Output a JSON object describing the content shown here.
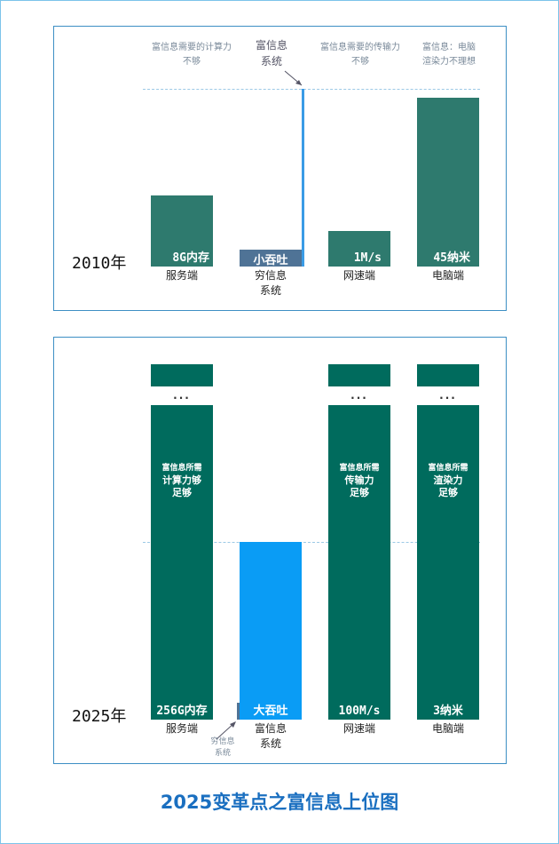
{
  "title": "2025变革点之富信息上位图",
  "panel_2010": {
    "year": "2010年",
    "notes": {
      "server": [
        "富信息需要的计算力",
        "不够"
      ],
      "rich": [
        "富信息",
        "系统"
      ],
      "network": [
        "富信息需要的传输力",
        "不够"
      ],
      "pc": [
        "富信息：电脑",
        "渲染力不理想"
      ]
    },
    "bars": {
      "server": {
        "label": "8G内存",
        "category": "服务端"
      },
      "poor": {
        "label": "小吞吐",
        "category": [
          "穷信息",
          "系统"
        ]
      },
      "network": {
        "label": "1M/s",
        "category": "网速端"
      },
      "pc": {
        "label": "45纳米",
        "category": "电脑端"
      }
    }
  },
  "panel_2025": {
    "year": "2025年",
    "ellipsis": "...",
    "bars": {
      "server": {
        "label": "256G内存",
        "category": "服务端",
        "inner": [
          "富信息所需",
          "计算力够",
          "足够"
        ]
      },
      "rich": {
        "label": "大吞吐",
        "category": [
          "富信息",
          "系统"
        ]
      },
      "network": {
        "label": "100M/s",
        "category": "网速端",
        "inner": [
          "富信息所需",
          "传输力",
          "足够"
        ]
      },
      "pc": {
        "label": "3纳米",
        "category": "电脑端",
        "inner": [
          "富信息所需",
          "渲染力",
          "足够"
        ]
      }
    },
    "poor_note": [
      "穷信息",
      "系统"
    ]
  },
  "colors": {
    "bar": "#2e7a6e",
    "bar_dark": "#006b5d",
    "poor": "#4f7396",
    "rich": "#0a9cf5",
    "rich_line": "#3a9be6",
    "title": "#1a6fc0"
  }
}
